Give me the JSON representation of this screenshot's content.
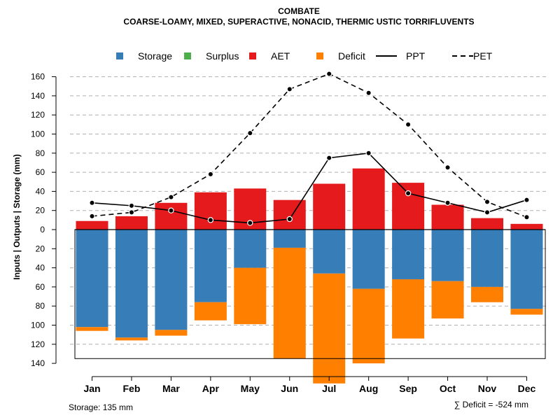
{
  "chart_data": {
    "type": "bar",
    "title": "COMBATE",
    "subtitle": "COARSE-LOAMY, MIXED, SUPERACTIVE, NONACID, THERMIC USTIC TORRIFLUVENTS",
    "ylabel": "Inputs | Outputs | Storage    (mm)",
    "categories": [
      "Jan",
      "Feb",
      "Mar",
      "Apr",
      "May",
      "Jun",
      "Jul",
      "Aug",
      "Sep",
      "Oct",
      "Nov",
      "Dec"
    ],
    "y_ticks_top": [
      0,
      20,
      40,
      60,
      80,
      100,
      120,
      140,
      160
    ],
    "y_ticks_bottom": [
      20,
      40,
      60,
      80,
      100,
      120,
      140
    ],
    "ylim": [
      -140,
      165
    ],
    "storage_capacity": 135,
    "legend": [
      {
        "label": "Storage",
        "kind": "box",
        "color": "#377EB8"
      },
      {
        "label": "Surplus",
        "kind": "box",
        "color": "#4DAF4A"
      },
      {
        "label": "AET",
        "kind": "box",
        "color": "#E41A1C"
      },
      {
        "label": "Deficit",
        "kind": "box",
        "color": "#FF7F00"
      },
      {
        "label": "PPT",
        "kind": "solid-line",
        "color": "#000000"
      },
      {
        "label": "PET",
        "kind": "dashed-line",
        "color": "#000000"
      }
    ],
    "series": [
      {
        "name": "AET",
        "color": "#E41A1C",
        "values": [
          9,
          14,
          28,
          39,
          43,
          31,
          48,
          64,
          49,
          26,
          12,
          6
        ]
      },
      {
        "name": "Storage",
        "color": "#377EB8",
        "values": [
          102,
          113,
          105,
          76,
          40,
          19,
          46,
          62,
          52,
          54,
          60,
          83
        ]
      },
      {
        "name": "Deficit",
        "color": "#FF7F00",
        "values": [
          4,
          3,
          6,
          19,
          59,
          116,
          115,
          78,
          62,
          39,
          16,
          6
        ]
      },
      {
        "name": "PPT",
        "color": "#000000",
        "values": [
          28,
          25,
          20,
          10,
          7,
          11,
          75,
          80,
          38,
          28,
          18,
          31
        ]
      },
      {
        "name": "PET",
        "color": "#000000",
        "values": [
          14,
          18,
          34,
          58,
          101,
          147,
          163,
          143,
          110,
          65,
          29,
          13
        ]
      }
    ],
    "storage_label": "Storage: 135 mm",
    "deficit_label": "∑ Deficit = -524 mm"
  }
}
